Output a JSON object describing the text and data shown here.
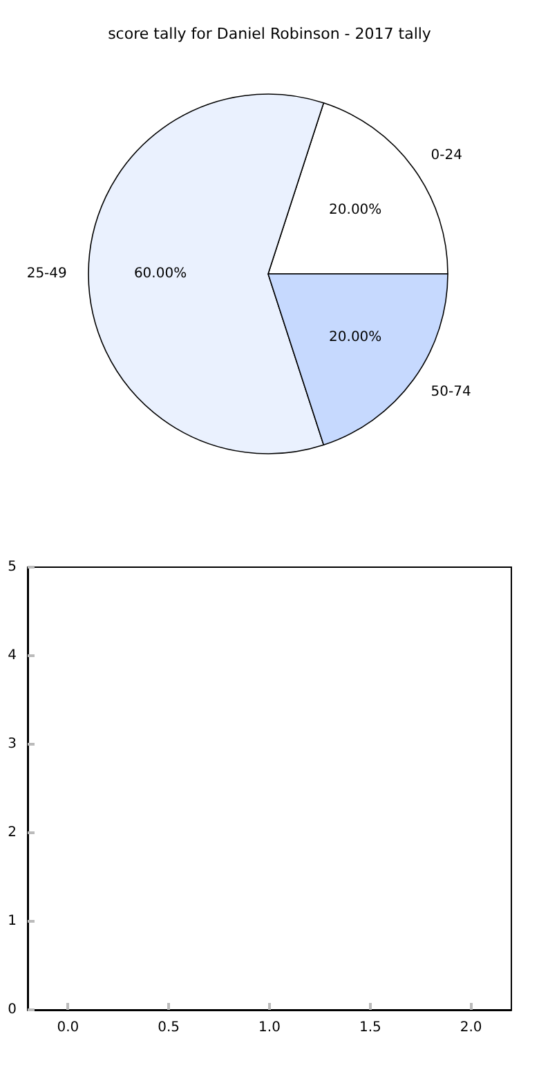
{
  "chart_data": [
    {
      "type": "pie",
      "title": "score tally for Daniel Robinson - 2017 tally",
      "categories": [
        "0-24",
        "25-49",
        "50-74"
      ],
      "values": [
        20,
        60,
        20
      ],
      "value_labels": [
        "20.00%",
        "60.00%",
        "20.00%"
      ],
      "colors": [
        "#ffffff",
        "#eaf1fe",
        "#c6d9fe"
      ]
    },
    {
      "type": "scatter",
      "xlim": [
        -0.2,
        2.2
      ],
      "ylim": [
        0,
        5
      ],
      "xticks": [
        {
          "value": 0,
          "label": "0.0"
        },
        0.5,
        {
          "value": 1,
          "label": "1.0"
        },
        1.5,
        {
          "value": 2,
          "label": "2.0"
        }
      ],
      "yticks": [
        0,
        1,
        2,
        3,
        4,
        5
      ]
    }
  ]
}
